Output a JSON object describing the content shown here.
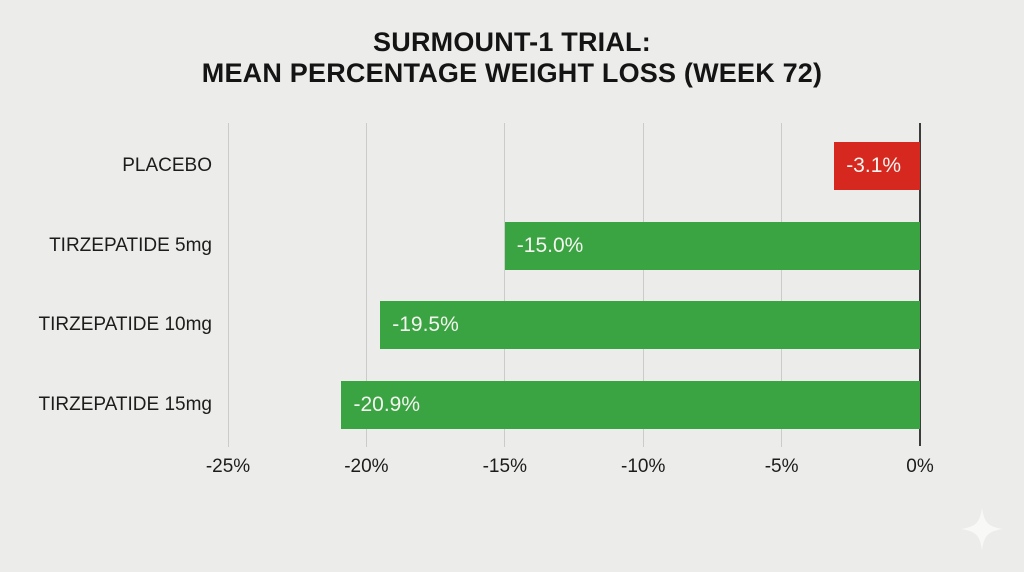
{
  "page": {
    "background_color": "#ececea"
  },
  "chart_data": {
    "type": "bar",
    "orientation": "horizontal",
    "title_line1": "SURMOUNT-1 TRIAL:",
    "title_line2": "MEAN PERCENTAGE WEIGHT LOSS (WEEK 72)",
    "categories": [
      "PLACEBO",
      "TIRZEPATIDE 5mg",
      "TIRZEPATIDE 10mg",
      "TIRZEPATIDE 15mg"
    ],
    "values": [
      -3.1,
      -15.0,
      -19.5,
      -20.9
    ],
    "value_labels": [
      "-3.1%",
      "-15.0%",
      "-19.5%",
      "-20.9%"
    ],
    "bar_colors": [
      "#d6281e",
      "#3aa442",
      "#3aa442",
      "#3aa442"
    ],
    "xlim": [
      -25,
      0
    ],
    "x_tick_values": [
      -25,
      -20,
      -15,
      -10,
      -5,
      0
    ],
    "x_tick_labels": [
      "-25%",
      "-20%",
      "-15%",
      "-10%",
      "-5%",
      "0%"
    ],
    "grid": true,
    "legend": false,
    "colors": {
      "placebo_bar": "#d6281e",
      "tirzepatide_bar": "#3aa442",
      "gridline": "#cbcbc9",
      "zero_axis": "#3c3c3c",
      "title_text": "#141414",
      "category_text": "#1c1c1c",
      "value_text": "#f4f4f0"
    }
  },
  "decorations": {
    "sparkle_icon": "four-pointed-star",
    "sparkle_color": "#fbfbf9"
  }
}
